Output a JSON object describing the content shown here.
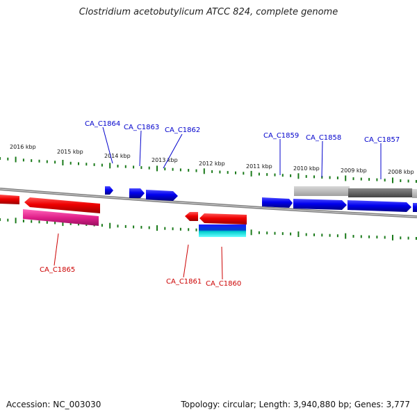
{
  "title": "Clostridium acetobutylicum ATCC 824, complete genome",
  "footer": {
    "accession": "Accession: NC_003030",
    "summary": "Topology: circular; Length: 3,940,880 bp; Genes: 3,777"
  },
  "ticks": [
    {
      "label": "2016 kbp",
      "dir": "reverse"
    },
    {
      "label": "2015 kbp",
      "dir": "reverse"
    },
    {
      "label": "2014 kbp",
      "dir": "reverse"
    },
    {
      "label": "2013 kbp",
      "dir": "reverse"
    },
    {
      "label": "2012 kbp",
      "dir": "reverse"
    },
    {
      "label": "2011 kbp",
      "dir": "reverse"
    },
    {
      "label": "2010 kbp",
      "dir": "reverse"
    },
    {
      "label": "2009 kbp",
      "dir": "reverse"
    },
    {
      "label": "2008 kbp",
      "dir": "reverse"
    }
  ],
  "gene_labels": [
    {
      "name": "CA_C1864",
      "strand": "plus",
      "color": "#0000cc"
    },
    {
      "name": "CA_C1863",
      "strand": "plus",
      "color": "#0000cc"
    },
    {
      "name": "CA_C1862",
      "strand": "plus",
      "color": "#0000cc"
    },
    {
      "name": "CA_C1859",
      "strand": "plus",
      "color": "#0000cc"
    },
    {
      "name": "CA_C1858",
      "strand": "plus",
      "color": "#0000cc"
    },
    {
      "name": "CA_C1857",
      "strand": "plus",
      "color": "#0000cc"
    },
    {
      "name": "CA_C1865",
      "strand": "minus",
      "color": "#cc0000"
    },
    {
      "name": "CA_C1861",
      "strand": "minus",
      "color": "#cc0000"
    },
    {
      "name": "CA_C1860",
      "strand": "minus",
      "color": "#cc0000"
    }
  ],
  "colors": {
    "plus_strand": "#0000ee",
    "minus_strand": "#ee0000",
    "backbone": "#888888",
    "tick": "#1a7a1a",
    "pink_feature": "#e0208a",
    "cyan_feature": "#00cccc",
    "grey_feature": "#a0a0a0"
  }
}
